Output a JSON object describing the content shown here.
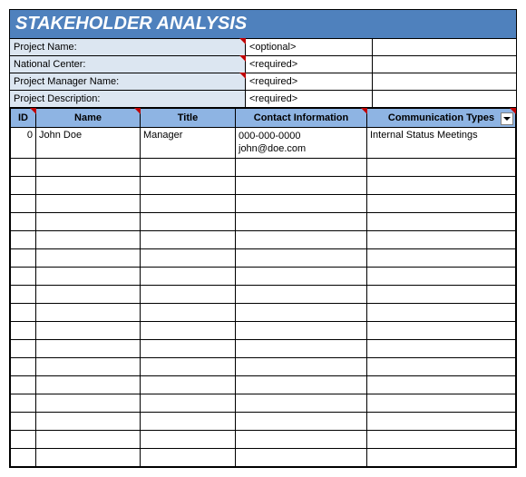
{
  "title": "STAKEHOLDER ANALYSIS",
  "meta": {
    "rows": [
      {
        "label": "Project Name:",
        "value": "<optional>",
        "note": true
      },
      {
        "label": "National Center:",
        "value": "<required>",
        "note": true
      },
      {
        "label": "Project Manager Name:",
        "value": "<required>",
        "note": true
      },
      {
        "label": "Project Description:",
        "value": "<required>",
        "note": false
      }
    ]
  },
  "table": {
    "columns": [
      {
        "key": "id",
        "label": "ID",
        "note": true,
        "filter": false,
        "class": "col-id"
      },
      {
        "key": "name",
        "label": "Name",
        "note": true,
        "filter": false,
        "class": "col-name"
      },
      {
        "key": "title",
        "label": "Title",
        "note": false,
        "filter": false,
        "class": "col-title"
      },
      {
        "key": "contact",
        "label": "Contact Information",
        "note": true,
        "filter": false,
        "class": "col-contact"
      },
      {
        "key": "comm",
        "label": "Communication Types",
        "note": true,
        "filter": true,
        "class": "col-comm"
      }
    ],
    "rows": [
      {
        "id": "0",
        "name": "John Doe",
        "title": "Manager",
        "contact_phone": "000-000-0000",
        "contact_email": "john@doe.com",
        "comm": "Internal Status Meetings"
      }
    ],
    "empty_rows": 17
  },
  "colors": {
    "title_bg": "#4f81bd",
    "meta_bg": "#dce6f1",
    "header_bg": "#8eb4e3",
    "note_triangle": "#c00000",
    "border": "#000000",
    "background": "#ffffff"
  }
}
